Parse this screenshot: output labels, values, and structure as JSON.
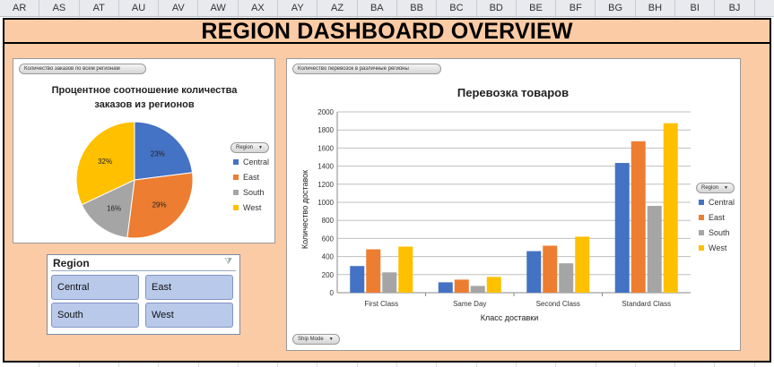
{
  "columns": [
    "AR",
    "AS",
    "AT",
    "AU",
    "AV",
    "AW",
    "AX",
    "AY",
    "AZ",
    "BA",
    "BB",
    "BC",
    "BD",
    "BE",
    "BF",
    "BG",
    "BH",
    "BI",
    "BJ"
  ],
  "dashboard_title": "REGION DASHBOARD OVERVIEW",
  "pie_panel": {
    "field_button": "Количество заказов по всем регионам",
    "title_line1": "Процентное соотношение количества",
    "title_line2": "заказов из регионов",
    "legend_filter": "Region"
  },
  "bar_panel": {
    "field_button": "Количество перевозок в различные регионы",
    "legend_filter": "Region",
    "ship_mode_filter": "Ship Mode"
  },
  "legend_items": [
    "Central",
    "East",
    "South",
    "West"
  ],
  "colors": {
    "Central": "#4472c4",
    "East": "#ed7d31",
    "South": "#a5a5a5",
    "West": "#ffc000"
  },
  "slicer": {
    "title": "Region",
    "buttons": [
      "Central",
      "East",
      "South",
      "West"
    ]
  },
  "chart_data": [
    {
      "type": "pie",
      "title": "Процентное соотношение количества заказов из регионов",
      "categories": [
        "Central",
        "East",
        "South",
        "West"
      ],
      "values": [
        23,
        29,
        16,
        32
      ],
      "labels": [
        "23%",
        "29%",
        "16%",
        "32%"
      ]
    },
    {
      "type": "bar",
      "title": "Перевозка товаров",
      "xlabel": "Класс доставки",
      "ylabel": "Количество доставок",
      "categories": [
        "First Class",
        "Same Day",
        "Second Class",
        "Standard Class"
      ],
      "ylim": [
        0,
        2000
      ],
      "yticks": [
        "0",
        "200",
        "400",
        "600",
        "800",
        "1000",
        "1200",
        "1400",
        "1600",
        "1800",
        "2000"
      ],
      "grid": true,
      "legend": "right",
      "series": [
        {
          "name": "Central",
          "values": [
            295,
            115,
            460,
            1435
          ]
        },
        {
          "name": "East",
          "values": [
            480,
            145,
            520,
            1675
          ]
        },
        {
          "name": "South",
          "values": [
            225,
            75,
            325,
            960
          ]
        },
        {
          "name": "West",
          "values": [
            510,
            175,
            620,
            1875
          ]
        }
      ]
    }
  ]
}
